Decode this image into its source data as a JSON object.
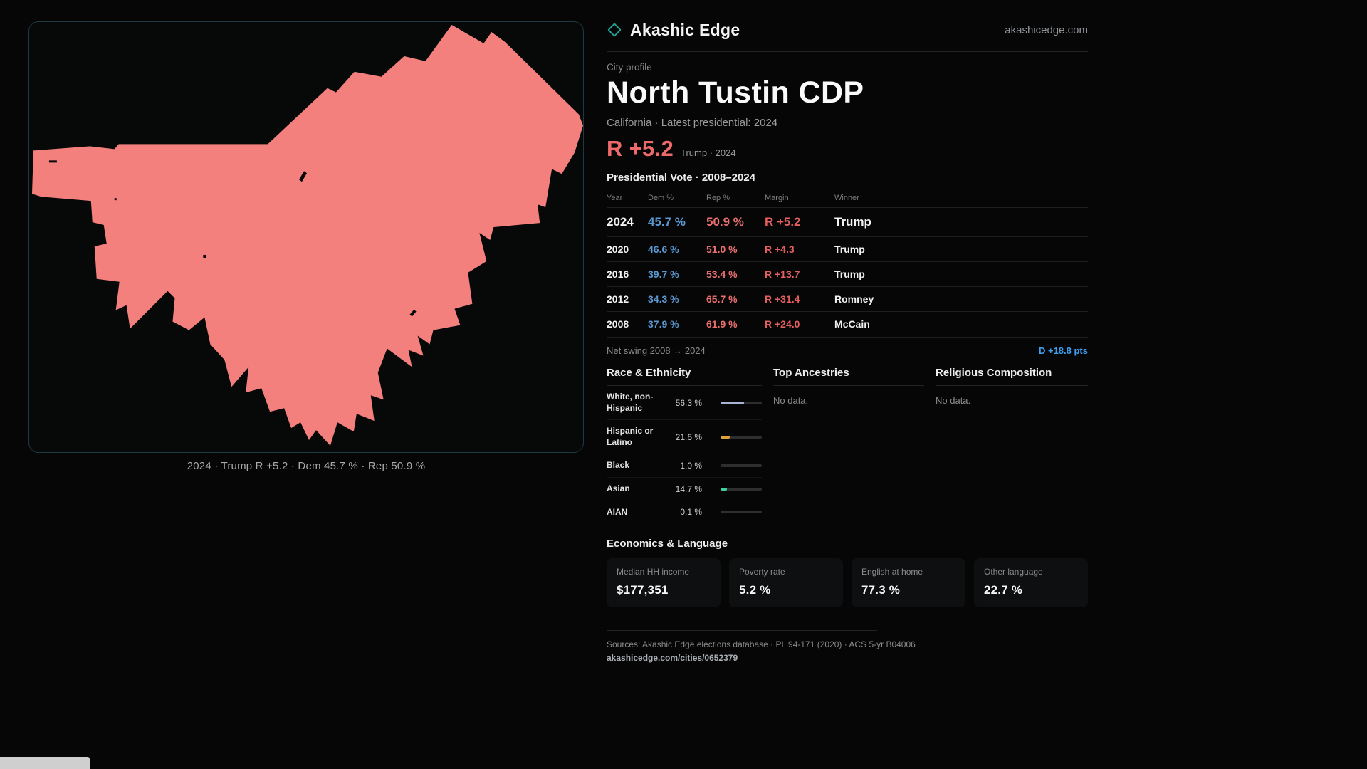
{
  "brand": {
    "name": "Akashic Edge",
    "domain": "akashicedge.com"
  },
  "profile": {
    "kicker": "City profile",
    "title": "North Tustin CDP",
    "subtitle": "California · Latest presidential: 2024",
    "headline_margin": "R +5.2",
    "headline_context": "Trump · 2024"
  },
  "map": {
    "caption": "2024 · Trump R +5.2 · Dem 45.7 % · Rep 50.9 %",
    "fill": "#f4807d"
  },
  "vote_table": {
    "title": "Presidential Vote · 2008–2024",
    "columns": [
      "Year",
      "Dem %",
      "Rep %",
      "Margin",
      "Winner"
    ],
    "rows": [
      {
        "year": "2024",
        "dem": "45.7 %",
        "rep": "50.9 %",
        "margin": "R +5.2",
        "winner": "Trump"
      },
      {
        "year": "2020",
        "dem": "46.6 %",
        "rep": "51.0 %",
        "margin": "R +4.3",
        "winner": "Trump"
      },
      {
        "year": "2016",
        "dem": "39.7 %",
        "rep": "53.4 %",
        "margin": "R +13.7",
        "winner": "Trump"
      },
      {
        "year": "2012",
        "dem": "34.3 %",
        "rep": "65.7 %",
        "margin": "R +31.4",
        "winner": "Romney"
      },
      {
        "year": "2008",
        "dem": "37.9 %",
        "rep": "61.9 %",
        "margin": "R +24.0",
        "winner": "McCain"
      }
    ],
    "net_swing_label": "Net swing 2008 → 2024",
    "net_swing_value": "D +18.8 pts"
  },
  "demographics": {
    "race": {
      "title": "Race & Ethnicity",
      "rows": [
        {
          "label": "White, non-Hispanic",
          "value": "56.3 %",
          "pct": 56.3,
          "color": "#a9b5d6"
        },
        {
          "label": "Hispanic or Latino",
          "value": "21.6 %",
          "pct": 21.6,
          "color": "#dfa23c"
        },
        {
          "label": "Black",
          "value": "1.0 %",
          "pct": 1.0,
          "color": "#d8d8d8"
        },
        {
          "label": "Asian",
          "value": "14.7 %",
          "pct": 14.7,
          "color": "#3ecf9f"
        },
        {
          "label": "AIAN",
          "value": "0.1 %",
          "pct": 0.1,
          "color": "#d8d8d8"
        }
      ]
    },
    "ancestries": {
      "title": "Top Ancestries",
      "empty": "No data."
    },
    "religion": {
      "title": "Religious Composition",
      "empty": "No data."
    }
  },
  "economics": {
    "title": "Economics & Language",
    "stats": [
      {
        "label": "Median HH income",
        "value": "$177,351"
      },
      {
        "label": "Poverty rate",
        "value": "5.2 %"
      },
      {
        "label": "English at home",
        "value": "77.3 %"
      },
      {
        "label": "Other language",
        "value": "22.7 %"
      }
    ]
  },
  "footer": {
    "sources": "Sources: Akashic Edge elections database · PL 94-171 (2020) · ACS 5-yr B04006",
    "permalink": "akashicedge.com/cities/0652379"
  }
}
